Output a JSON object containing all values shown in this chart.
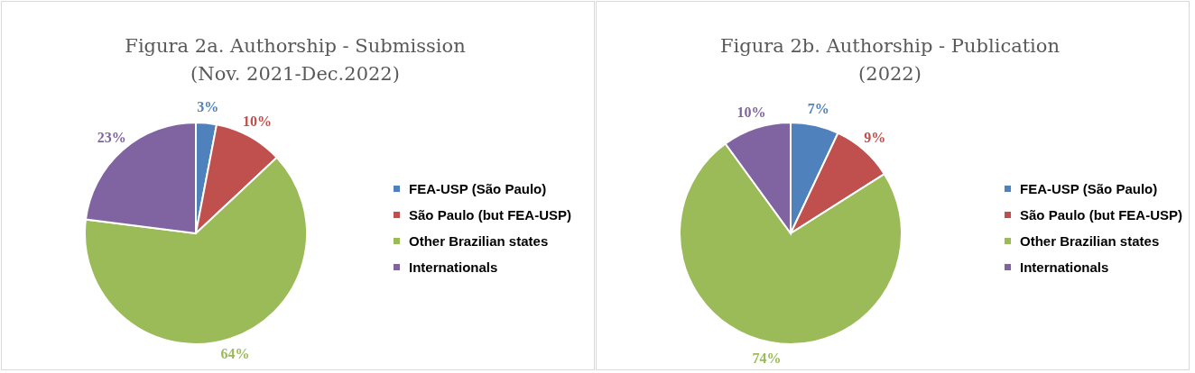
{
  "chart_data": [
    {
      "type": "pie",
      "title": "Figura 2a. Authorship - Submission\n(Nov. 2021-Dec.2022)",
      "categories": [
        "FEA-USP (São Paulo)",
        "São Paulo (but FEA-USP)",
        "Other Brazilian states",
        "Internationals"
      ],
      "values": [
        3,
        10,
        64,
        23
      ],
      "value_labels": [
        "3%",
        "10%",
        "64%",
        "23%"
      ],
      "colors": [
        "#4f81bd",
        "#c0504d",
        "#9bbb59",
        "#8064a2"
      ],
      "legend": "right"
    },
    {
      "type": "pie",
      "title": "Figura 2b. Authorship - Publication\n(2022)",
      "categories": [
        "FEA-USP (São Paulo)",
        "São Paulo (but FEA-USP)",
        "Other Brazilian states",
        "Internationals"
      ],
      "values": [
        7,
        9,
        74,
        10
      ],
      "value_labels": [
        "7%",
        "9%",
        "74%",
        "10%"
      ],
      "colors": [
        "#4f81bd",
        "#c0504d",
        "#9bbb59",
        "#8064a2"
      ],
      "legend": "right"
    }
  ]
}
